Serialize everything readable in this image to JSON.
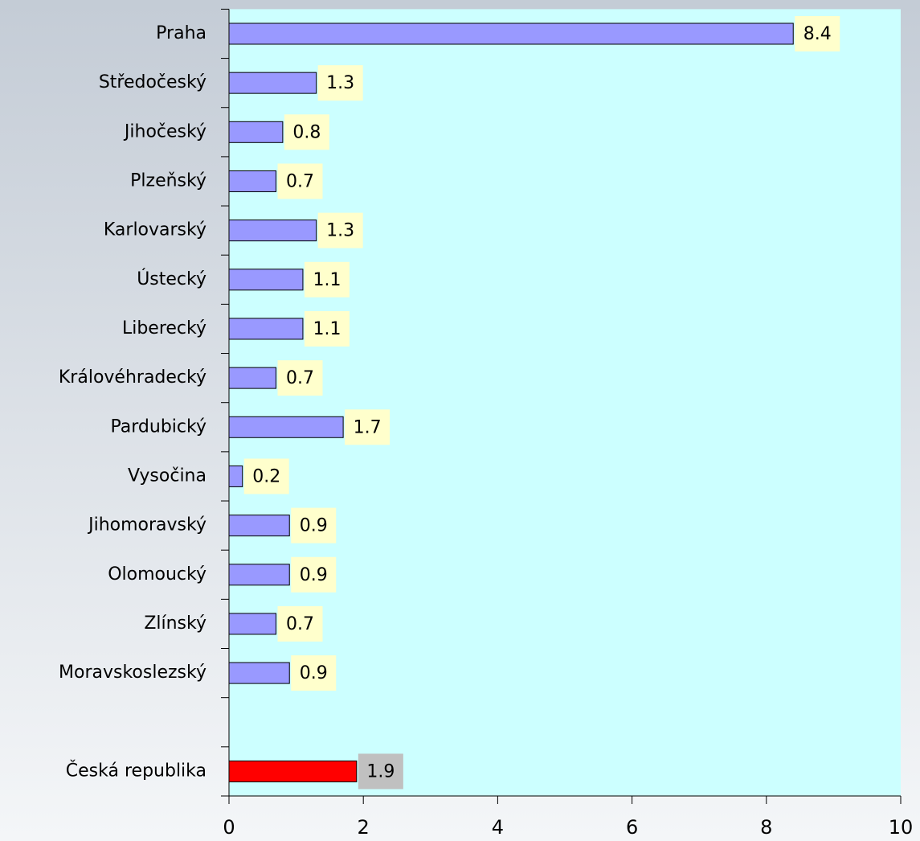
{
  "chart_data": {
    "type": "hbar",
    "categories": [
      "Praha",
      "Středočeský",
      "Jihočeský",
      "Plzeňský",
      "Karlovarský",
      "Ústecký",
      "Liberecký",
      "Královéhradecký",
      "Pardubický",
      "Vysočina",
      "Jihomoravský",
      "Olomoucký",
      "Zlínský",
      "Moravskoslezský",
      null,
      "Česká republika"
    ],
    "values": [
      8.4,
      1.3,
      0.8,
      0.7,
      1.3,
      1.1,
      1.1,
      0.7,
      1.7,
      0.2,
      0.9,
      0.9,
      0.7,
      0.9,
      null,
      1.9
    ],
    "colors": [
      "#9999ff",
      "#9999ff",
      "#9999ff",
      "#9999ff",
      "#9999ff",
      "#9999ff",
      "#9999ff",
      "#9999ff",
      "#9999ff",
      "#9999ff",
      "#9999ff",
      "#9999ff",
      "#9999ff",
      "#9999ff",
      null,
      "#ff0000"
    ],
    "label_colors": [
      "#ffffcc",
      "#ffffcc",
      "#ffffcc",
      "#ffffcc",
      "#ffffcc",
      "#ffffcc",
      "#ffffcc",
      "#ffffcc",
      "#ffffcc",
      "#ffffcc",
      "#ffffcc",
      "#ffffcc",
      "#ffffcc",
      "#ffffcc",
      null,
      "#c0c0c0"
    ],
    "xlim": [
      0,
      10
    ],
    "xticks": [
      0,
      2,
      4,
      6,
      8,
      10
    ],
    "plot_background": "#ccffff"
  }
}
